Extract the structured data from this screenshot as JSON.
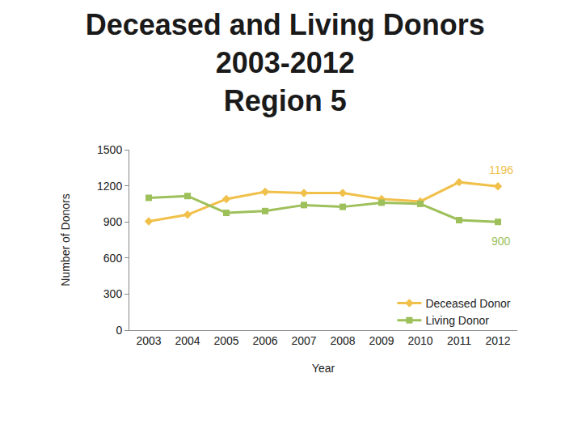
{
  "chart_data": {
    "type": "line",
    "title": [
      "Deceased and Living Donors",
      "2003-2012",
      "Region 5"
    ],
    "x_label": "Year",
    "y_label": "Number of Donors",
    "categories": [
      "2003",
      "2004",
      "2005",
      "2006",
      "2007",
      "2008",
      "2009",
      "2010",
      "2011",
      "2012"
    ],
    "series": [
      {
        "name": "Deceased Donor",
        "color": "#F0C04A",
        "marker": "diamond",
        "values": [
          905,
          960,
          1090,
          1150,
          1140,
          1140,
          1090,
          1070,
          1230,
          1196
        ]
      },
      {
        "name": "Living Donor",
        "color": "#9DC05A",
        "marker": "square",
        "values": [
          1100,
          1115,
          975,
          990,
          1040,
          1025,
          1060,
          1050,
          915,
          900
        ]
      }
    ],
    "ylim": [
      0,
      1500
    ],
    "yticks": [
      0,
      300,
      600,
      900,
      1200,
      1500
    ],
    "grid": false,
    "legend": "bottom right",
    "annotations": [
      {
        "text": "1196",
        "series": "Deceased Donor",
        "category": "2012"
      },
      {
        "text": "900",
        "series": "Living Donor",
        "category": "2012"
      }
    ]
  }
}
